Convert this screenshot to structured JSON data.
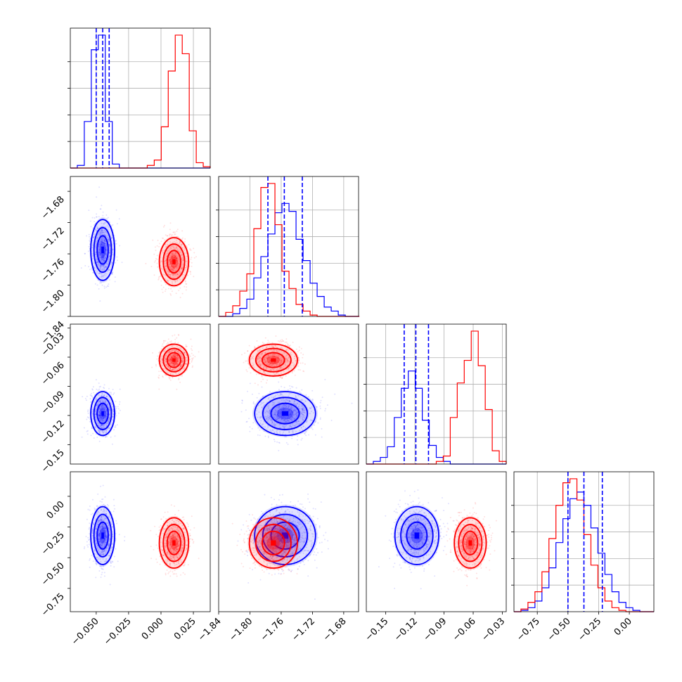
{
  "chart_data": {
    "type": "corner",
    "colors": {
      "blue": "#0000ff",
      "red": "#ff0000"
    },
    "grid": true,
    "parameters": [
      {
        "range": [
          -0.07,
          0.038
        ],
        "ticks": [
          -0.05,
          -0.025,
          0.0,
          0.025
        ],
        "tick_labels": [
          "−0.050",
          "−0.025",
          "0.000",
          "0.025"
        ]
      },
      {
        "range": [
          -1.84,
          -1.661
        ],
        "ticks": [
          -1.84,
          -1.8,
          -1.76,
          -1.72,
          -1.68
        ],
        "tick_labels": [
          "−1.84",
          "−1.80",
          "−1.76",
          "−1.72",
          "−1.68"
        ]
      },
      {
        "range": [
          -0.17,
          -0.026
        ],
        "ticks": [
          -0.15,
          -0.12,
          -0.09,
          -0.06,
          -0.03
        ],
        "tick_labels": [
          "−0.15",
          "−0.12",
          "−0.09",
          "−0.06",
          "−0.03"
        ]
      },
      {
        "range": [
          -0.94,
          0.2
        ],
        "ticks": [
          -0.75,
          -0.5,
          -0.25,
          0.0
        ],
        "tick_labels": [
          "−0.75",
          "−0.50",
          "−0.25",
          "0.00"
        ]
      }
    ],
    "series": [
      {
        "color": "#0000ff",
        "mean": [
          -0.045,
          -1.755,
          -0.118,
          -0.32
        ],
        "sd": [
          0.0045,
          0.019,
          0.011,
          0.115
        ],
        "quantiles": [
          [
            -0.05,
            -0.045,
            -0.04
          ],
          [
            -1.777,
            -1.756,
            -1.733
          ],
          [
            -0.131,
            -0.119,
            -0.106
          ],
          [
            -0.5,
            -0.37,
            -0.22
          ]
        ]
      },
      {
        "color": "#ff0000",
        "mean": [
          0.01,
          -1.77,
          -0.063,
          -0.38
        ],
        "sd": [
          0.0055,
          0.015,
          0.008,
          0.1
        ],
        "quantiles": []
      }
    ],
    "histograms": [
      {
        "edges": [
          -0.07,
          -0.0646,
          -0.0592,
          -0.0538,
          -0.0484,
          -0.043,
          -0.0376,
          -0.0322,
          -0.0268,
          -0.0214,
          -0.016,
          -0.0106,
          -0.0052,
          0.0002,
          0.0056,
          0.011,
          0.0164,
          0.0218,
          0.0272,
          0.0326,
          0.038
        ],
        "blue": [
          0,
          0.02,
          0.35,
          0.89,
          1.0,
          0.35,
          0.03,
          0,
          0,
          0,
          0,
          0,
          0,
          0,
          0,
          0,
          0,
          0,
          0,
          0
        ],
        "red": [
          0,
          0,
          0,
          0,
          0,
          0,
          0,
          0,
          0,
          0,
          0,
          0.02,
          0.06,
          0.31,
          0.73,
          1.0,
          0.86,
          0.28,
          0.04,
          0.01
        ]
      },
      {
        "edges": [
          -1.84,
          -1.831,
          -1.822,
          -1.813,
          -1.804,
          -1.795,
          -1.786,
          -1.777,
          -1.768,
          -1.759,
          -1.75,
          -1.741,
          -1.732,
          -1.723,
          -1.714,
          -1.705,
          -1.696,
          -1.687,
          -1.678,
          -1.669,
          -1.66
        ],
        "blue": [
          0,
          0,
          0.02,
          0.06,
          0.13,
          0.29,
          0.45,
          0.62,
          0.78,
          0.85,
          0.79,
          0.58,
          0.42,
          0.25,
          0.15,
          0.07,
          0.04,
          0.01,
          0,
          0
        ],
        "red": [
          0,
          0.03,
          0.08,
          0.19,
          0.32,
          0.66,
          0.97,
          1.0,
          0.69,
          0.34,
          0.21,
          0.09,
          0.04,
          0.01,
          0,
          0,
          0,
          0,
          0,
          0
        ]
      },
      {
        "edges": [
          -0.17,
          -0.1628,
          -0.1556,
          -0.1484,
          -0.1412,
          -0.134,
          -0.1268,
          -0.1196,
          -0.1124,
          -0.1052,
          -0.098,
          -0.0908,
          -0.0836,
          -0.0764,
          -0.0692,
          -0.062,
          -0.0548,
          -0.0476,
          -0.0404,
          -0.0332,
          -0.026
        ],
        "blue": [
          0,
          0.02,
          0.05,
          0.13,
          0.35,
          0.57,
          0.7,
          0.57,
          0.33,
          0.14,
          0.05,
          0.02,
          0,
          0,
          0,
          0,
          0,
          0,
          0,
          0
        ],
        "red": [
          0,
          0,
          0,
          0,
          0,
          0,
          0,
          0,
          0,
          0,
          0.02,
          0.06,
          0.35,
          0.61,
          0.78,
          1.0,
          0.74,
          0.41,
          0.1,
          0.02
        ]
      },
      {
        "edges": [
          -0.94,
          -0.883,
          -0.826,
          -0.769,
          -0.712,
          -0.655,
          -0.598,
          -0.541,
          -0.484,
          -0.427,
          -0.37,
          -0.313,
          -0.256,
          -0.199,
          -0.142,
          -0.085,
          -0.028,
          0.029,
          0.086,
          0.143,
          0.2
        ],
        "blue": [
          0,
          0.01,
          0.03,
          0.08,
          0.18,
          0.33,
          0.52,
          0.7,
          0.85,
          0.9,
          0.8,
          0.63,
          0.44,
          0.28,
          0.15,
          0.07,
          0.03,
          0.01,
          0,
          0
        ],
        "red": [
          0,
          0.02,
          0.07,
          0.15,
          0.3,
          0.55,
          0.8,
          0.97,
          1.0,
          0.84,
          0.58,
          0.35,
          0.18,
          0.08,
          0.03,
          0.01,
          0,
          0,
          0,
          0
        ]
      }
    ]
  }
}
